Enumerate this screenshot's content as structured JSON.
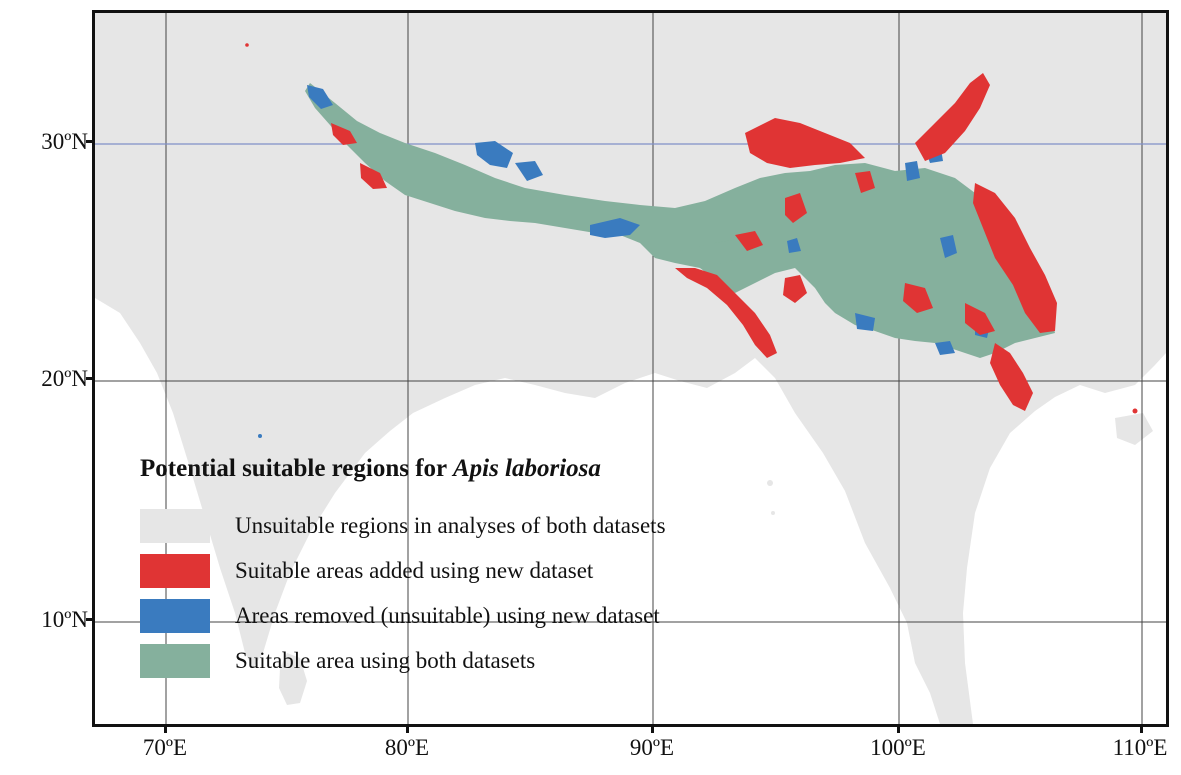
{
  "map": {
    "latitude_labels": [
      "30ºN",
      "20ºN",
      "10ºN"
    ],
    "longitude_labels": [
      "70ºE",
      "80ºE",
      "90ºE",
      "100ºE",
      "110ºE"
    ],
    "colors": {
      "land": "#e6e6e6",
      "sea": "#ffffff",
      "gridline": "#444444",
      "highlight_parallel": "#8090c8",
      "added": "#e03434",
      "removed": "#3a7bbf",
      "both": "#85b09d"
    }
  },
  "legend": {
    "title_prefix": "Potential suitable regions for ",
    "title_species": "Apis laboriosa",
    "items": [
      {
        "label": "Unsuitable regions in analyses of both datasets",
        "color": "#e6e6e6"
      },
      {
        "label": "Suitable areas added using new dataset",
        "color": "#e03434"
      },
      {
        "label": "Areas removed (unsuitable) using new dataset",
        "color": "#3a7bbf"
      },
      {
        "label": "Suitable area using both datasets",
        "color": "#85b09d"
      }
    ]
  }
}
